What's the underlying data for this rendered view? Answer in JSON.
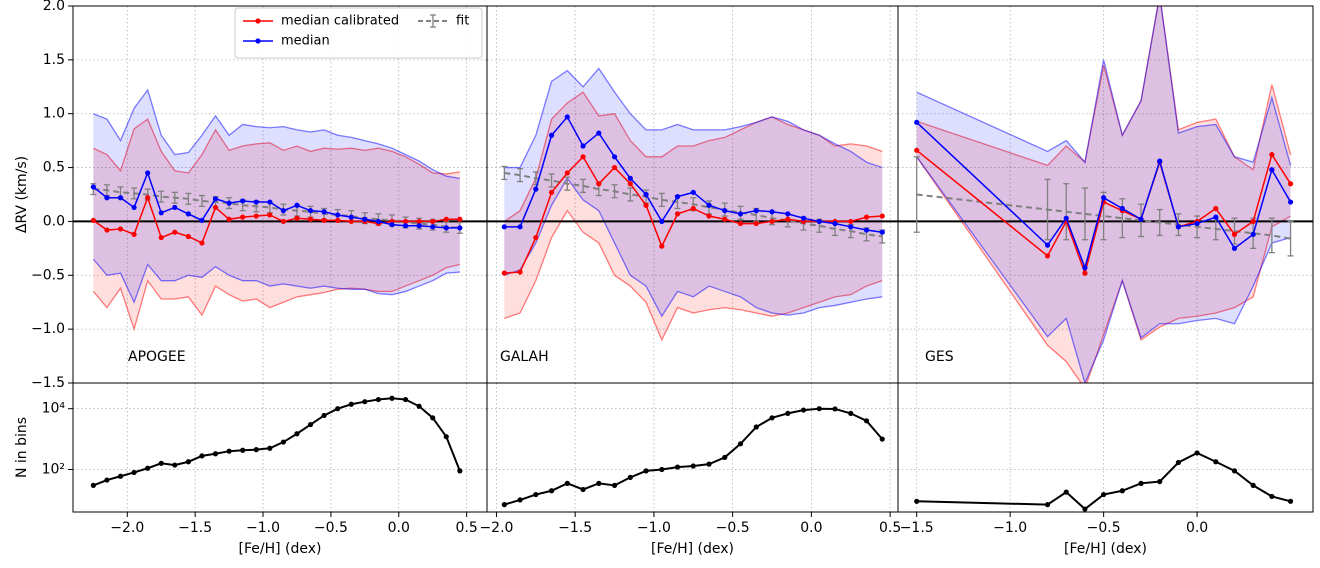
{
  "chart_data": [
    {
      "type": "line",
      "label": "APOGEE",
      "ylabel": "ΔRV (km/s)",
      "grid": true,
      "legend": "upper right",
      "hline": 0,
      "ytick_labels": true,
      "xtick_labels": false,
      "xlim": [
        -2.4,
        0.65
      ],
      "xticks": [
        -2.0,
        -1.5,
        -1.0,
        -0.5,
        0.0,
        0.5
      ],
      "ylim": [
        -1.5,
        2.0
      ],
      "yticks": [
        {
          "value": -1.5,
          "label": "−1.5"
        },
        {
          "value": -1.0,
          "label": "−1.0"
        },
        {
          "value": -0.5,
          "label": "−0.5"
        },
        {
          "value": 0.0,
          "label": "0.0"
        },
        0.5,
        {
          "value": 1.0,
          "label": "1.0"
        },
        1.5,
        {
          "value": 2.0,
          "label": "2.0"
        }
      ],
      "x": [
        -2.25,
        -2.15,
        -2.05,
        -1.95,
        -1.85,
        -1.75,
        -1.65,
        -1.55,
        -1.45,
        -1.35,
        -1.25,
        -1.15,
        -1.05,
        -0.95,
        -0.85,
        -0.75,
        -0.65,
        -0.55,
        -0.45,
        -0.35,
        -0.25,
        -0.15,
        -0.05,
        0.05,
        0.15,
        0.25,
        0.35,
        0.45
      ],
      "series": [
        {
          "name": "median calibrated",
          "color": "#ff0000",
          "values": [
            0.01,
            -0.08,
            -0.07,
            -0.12,
            0.22,
            -0.15,
            -0.1,
            -0.14,
            -0.2,
            0.13,
            0.02,
            0.04,
            0.05,
            0.06,
            0.0,
            0.03,
            0.02,
            0.01,
            0.01,
            0.0,
            0.0,
            -0.02,
            0.0,
            0.0,
            0.0,
            0.0,
            0.02,
            0.02
          ],
          "upper": [
            0.68,
            0.62,
            0.47,
            0.86,
            0.95,
            0.65,
            0.47,
            0.45,
            0.62,
            0.85,
            0.66,
            0.7,
            0.72,
            0.73,
            0.66,
            0.7,
            0.65,
            0.68,
            0.67,
            0.68,
            0.66,
            0.68,
            0.65,
            0.6,
            0.53,
            0.45,
            0.44,
            0.46
          ],
          "lower": [
            -0.65,
            -0.8,
            -0.62,
            -1.0,
            -0.55,
            -0.72,
            -0.72,
            -0.7,
            -0.87,
            -0.6,
            -0.68,
            -0.74,
            -0.72,
            -0.8,
            -0.75,
            -0.7,
            -0.68,
            -0.66,
            -0.63,
            -0.62,
            -0.63,
            -0.65,
            -0.65,
            -0.6,
            -0.55,
            -0.5,
            -0.43,
            -0.4
          ]
        },
        {
          "name": "median",
          "color": "#0000ff",
          "values": [
            0.32,
            0.22,
            0.22,
            0.13,
            0.45,
            0.08,
            0.13,
            0.07,
            0.01,
            0.21,
            0.17,
            0.19,
            0.18,
            0.18,
            0.1,
            0.15,
            0.1,
            0.09,
            0.06,
            0.04,
            0.02,
            0.0,
            -0.03,
            -0.04,
            -0.04,
            -0.05,
            -0.06,
            -0.06
          ],
          "upper": [
            1.0,
            0.95,
            0.75,
            1.05,
            1.22,
            0.8,
            0.62,
            0.64,
            0.8,
            0.98,
            0.8,
            0.9,
            0.88,
            0.87,
            0.88,
            0.85,
            0.83,
            0.85,
            0.8,
            0.78,
            0.75,
            0.72,
            0.68,
            0.62,
            0.56,
            0.48,
            0.42,
            0.4
          ],
          "lower": [
            -0.35,
            -0.5,
            -0.48,
            -0.75,
            -0.4,
            -0.55,
            -0.55,
            -0.5,
            -0.52,
            -0.42,
            -0.5,
            -0.55,
            -0.55,
            -0.6,
            -0.58,
            -0.6,
            -0.62,
            -0.6,
            -0.62,
            -0.63,
            -0.63,
            -0.67,
            -0.68,
            -0.65,
            -0.6,
            -0.55,
            -0.48,
            -0.47
          ]
        },
        {
          "name": "fit",
          "color": "#808080",
          "values": [
            0.3,
            0.29,
            0.27,
            0.26,
            0.25,
            0.23,
            0.22,
            0.21,
            0.19,
            0.18,
            0.17,
            0.15,
            0.14,
            0.13,
            0.11,
            0.1,
            0.09,
            0.07,
            0.06,
            0.05,
            0.03,
            0.02,
            0.01,
            -0.01,
            -0.02,
            -0.03,
            -0.05,
            -0.06
          ],
          "errors": [
            0.05,
            0.05,
            0.05,
            0.05,
            0.05,
            0.05,
            0.05,
            0.05,
            0.05,
            0.05,
            0.05,
            0.05,
            0.05,
            0.05,
            0.05,
            0.05,
            0.05,
            0.05,
            0.05,
            0.05,
            0.05,
            0.05,
            0.05,
            0.05,
            0.05,
            0.05,
            0.05,
            0.05
          ]
        }
      ]
    },
    {
      "type": "line",
      "ylabel": "N in bins",
      "xlabel": "[Fe/H] (dex)",
      "log_y": true,
      "grid": true,
      "color": "#000000",
      "ytick_labels": true,
      "xtick_labels": true,
      "xlim": [
        -2.4,
        0.65
      ],
      "xticks": [
        {
          "value": -2.0,
          "label": "−2.0"
        },
        {
          "value": -1.5,
          "label": "−1.5"
        },
        {
          "value": -1.0,
          "label": "−1.0"
        },
        {
          "value": -0.5,
          "label": "−0.5"
        },
        {
          "value": 0.0,
          "label": "0.0"
        },
        0.5
      ],
      "ylim": [
        4,
        70000
      ],
      "yticks": [
        {
          "value": 100,
          "label": "10²"
        },
        {
          "value": 10000,
          "label": "10⁴"
        }
      ],
      "x": [
        -2.25,
        -2.15,
        -2.05,
        -1.95,
        -1.85,
        -1.75,
        -1.65,
        -1.55,
        -1.45,
        -1.35,
        -1.25,
        -1.15,
        -1.05,
        -0.95,
        -0.85,
        -0.75,
        -0.65,
        -0.55,
        -0.45,
        -0.35,
        -0.25,
        -0.15,
        -0.05,
        0.05,
        0.15,
        0.25,
        0.35,
        0.45
      ],
      "values": [
        30,
        45,
        60,
        80,
        110,
        160,
        140,
        180,
        280,
        330,
        400,
        430,
        450,
        500,
        800,
        1500,
        3000,
        6000,
        10000,
        14000,
        17000,
        20000,
        22000,
        20000,
        12000,
        5000,
        1200,
        90
      ]
    },
    {
      "type": "line",
      "label": "GALAH",
      "grid": true,
      "hline": 0,
      "ytick_labels": false,
      "xtick_labels": false,
      "xlim": [
        -2.06,
        0.55
      ],
      "xticks": [
        -2.0,
        -1.5,
        -1.0,
        -0.5,
        0.0,
        0.5
      ],
      "ylim": [
        -1.5,
        2.0
      ],
      "yticks": [
        -1.5,
        -1.0,
        -0.5,
        0.0,
        0.5,
        1.0,
        1.5,
        2.0
      ],
      "x": [
        -1.95,
        -1.85,
        -1.75,
        -1.65,
        -1.55,
        -1.45,
        -1.35,
        -1.25,
        -1.15,
        -1.05,
        -0.95,
        -0.85,
        -0.75,
        -0.65,
        -0.55,
        -0.45,
        -0.35,
        -0.25,
        -0.15,
        -0.05,
        0.05,
        0.15,
        0.25,
        0.35,
        0.45
      ],
      "series": [
        {
          "color": "#ff0000",
          "values": [
            -0.48,
            -0.47,
            -0.15,
            0.27,
            0.45,
            0.6,
            0.35,
            0.5,
            0.35,
            0.15,
            -0.23,
            0.07,
            0.12,
            0.05,
            0.02,
            -0.02,
            -0.02,
            0.0,
            0.02,
            0.0,
            0.0,
            0.0,
            0.0,
            0.04,
            0.05
          ],
          "upper": [
            0.0,
            0.1,
            0.4,
            0.95,
            1.1,
            1.2,
            0.98,
            1.0,
            0.75,
            0.6,
            0.6,
            0.7,
            0.7,
            0.75,
            0.78,
            0.85,
            0.92,
            0.97,
            0.9,
            0.85,
            0.8,
            0.7,
            0.72,
            0.7,
            0.65
          ],
          "lower": [
            -0.9,
            -0.85,
            -0.55,
            -0.15,
            0.1,
            -0.1,
            -0.2,
            -0.5,
            -0.6,
            -0.75,
            -1.1,
            -0.8,
            -0.85,
            -0.82,
            -0.8,
            -0.82,
            -0.85,
            -0.88,
            -0.85,
            -0.8,
            -0.75,
            -0.7,
            -0.68,
            -0.6,
            -0.55
          ]
        },
        {
          "color": "#0000ff",
          "values": [
            -0.05,
            -0.05,
            0.3,
            0.8,
            0.97,
            0.7,
            0.82,
            0.6,
            0.4,
            0.25,
            0.0,
            0.23,
            0.27,
            0.15,
            0.1,
            0.07,
            0.1,
            0.09,
            0.07,
            0.03,
            0.0,
            -0.02,
            -0.05,
            -0.08,
            -0.1
          ],
          "upper": [
            0.5,
            0.5,
            0.8,
            1.3,
            1.4,
            1.25,
            1.42,
            1.2,
            1.0,
            0.85,
            0.85,
            0.9,
            0.85,
            0.85,
            0.85,
            0.88,
            0.92,
            0.97,
            0.93,
            0.85,
            0.8,
            0.72,
            0.65,
            0.55,
            0.5
          ],
          "lower": [
            -0.5,
            -0.45,
            -0.2,
            0.15,
            0.4,
            0.2,
            0.1,
            -0.2,
            -0.5,
            -0.6,
            -0.88,
            -0.65,
            -0.7,
            -0.6,
            -0.65,
            -0.7,
            -0.8,
            -0.85,
            -0.87,
            -0.85,
            -0.8,
            -0.78,
            -0.75,
            -0.72,
            -0.7
          ]
        },
        {
          "color": "#808080",
          "values": [
            0.45,
            0.43,
            0.4,
            0.38,
            0.35,
            0.33,
            0.3,
            0.28,
            0.25,
            0.23,
            0.2,
            0.18,
            0.16,
            0.13,
            0.11,
            0.08,
            0.06,
            0.03,
            0.01,
            -0.02,
            -0.04,
            -0.07,
            -0.09,
            -0.12,
            -0.14
          ],
          "errors": [
            0.06,
            0.06,
            0.06,
            0.06,
            0.06,
            0.06,
            0.06,
            0.06,
            0.06,
            0.06,
            0.06,
            0.06,
            0.06,
            0.06,
            0.06,
            0.06,
            0.06,
            0.06,
            0.06,
            0.06,
            0.06,
            0.06,
            0.06,
            0.06,
            0.06
          ]
        }
      ]
    },
    {
      "type": "line",
      "xlabel": "[Fe/H] (dex)",
      "log_y": true,
      "grid": true,
      "color": "#000000",
      "ytick_labels": false,
      "xtick_labels": true,
      "xlim": [
        -2.06,
        0.55
      ],
      "xticks": [
        {
          "value": -2.0,
          "label": "−2.0"
        },
        {
          "value": -1.5,
          "label": "−1.5"
        },
        {
          "value": -1.0,
          "label": "−1.0"
        },
        {
          "value": -0.5,
          "label": "−0.5"
        },
        {
          "value": 0.0,
          "label": "0.0"
        },
        0.5
      ],
      "ylim": [
        4,
        70000
      ],
      "yticks": [
        100,
        10000
      ],
      "x": [
        -1.95,
        -1.85,
        -1.75,
        -1.65,
        -1.55,
        -1.45,
        -1.35,
        -1.25,
        -1.15,
        -1.05,
        -0.95,
        -0.85,
        -0.75,
        -0.65,
        -0.55,
        -0.45,
        -0.35,
        -0.25,
        -0.15,
        -0.05,
        0.05,
        0.15,
        0.25,
        0.35,
        0.45
      ],
      "values": [
        7,
        10,
        15,
        20,
        35,
        22,
        35,
        30,
        55,
        90,
        100,
        120,
        130,
        150,
        250,
        700,
        2500,
        5000,
        7000,
        9000,
        10000,
        9800,
        7000,
        4000,
        1000
      ]
    },
    {
      "type": "line",
      "label": "GES",
      "grid": true,
      "hline": 0,
      "ytick_labels": false,
      "xtick_labels": false,
      "xlim": [
        -1.6,
        0.62
      ],
      "xticks": [
        -1.5,
        -1.0,
        -0.5,
        0.0
      ],
      "ylim": [
        -1.5,
        2.0
      ],
      "yticks": [
        -1.5,
        -1.0,
        -0.5,
        0.0,
        0.5,
        1.0,
        1.5,
        2.0
      ],
      "x": [
        -1.5,
        -0.8,
        -0.7,
        -0.6,
        -0.5,
        -0.4,
        -0.3,
        -0.2,
        -0.1,
        0.0,
        0.1,
        0.2,
        0.3,
        0.4,
        0.5
      ],
      "series": [
        {
          "color": "#ff0000",
          "values": [
            0.66,
            -0.32,
            0.0,
            -0.48,
            0.18,
            0.1,
            0.02,
            0.55,
            -0.05,
            0.0,
            0.12,
            -0.12,
            0.0,
            0.62,
            0.35
          ],
          "upper": [
            0.93,
            0.52,
            0.7,
            0.55,
            1.45,
            0.8,
            1.12,
            2.1,
            0.85,
            0.92,
            0.95,
            0.6,
            0.48,
            1.27,
            0.62
          ],
          "lower": [
            0.6,
            -1.15,
            -1.3,
            -1.55,
            -1.05,
            -0.55,
            -1.1,
            -0.98,
            -0.9,
            -0.88,
            -0.85,
            -0.8,
            -0.7,
            -0.05,
            0.05
          ]
        },
        {
          "color": "#0000ff",
          "values": [
            0.92,
            -0.22,
            0.03,
            -0.43,
            0.22,
            0.12,
            0.02,
            0.56,
            -0.05,
            -0.02,
            0.04,
            -0.25,
            -0.12,
            0.48,
            0.18
          ],
          "upper": [
            1.2,
            0.65,
            0.75,
            0.55,
            1.5,
            0.8,
            1.12,
            2.1,
            0.82,
            0.88,
            0.9,
            0.6,
            0.55,
            1.15,
            0.52
          ],
          "lower": [
            0.6,
            -1.07,
            -0.9,
            -1.5,
            -1.1,
            -0.55,
            -1.08,
            -0.95,
            -0.95,
            -0.92,
            -0.9,
            -0.95,
            -0.6,
            -0.2,
            -0.15
          ]
        },
        {
          "color": "#808080",
          "values": [
            0.25,
            0.11,
            0.09,
            0.07,
            0.05,
            0.03,
            0.01,
            -0.01,
            -0.03,
            -0.05,
            -0.07,
            -0.09,
            -0.11,
            -0.13,
            -0.16
          ],
          "errors": [
            0.35,
            0.28,
            0.26,
            0.24,
            0.22,
            0.18,
            0.15,
            0.12,
            0.1,
            0.1,
            0.1,
            0.12,
            0.14,
            0.16,
            0.16
          ]
        }
      ]
    },
    {
      "type": "line",
      "xlabel": "[Fe/H] (dex)",
      "log_y": true,
      "grid": true,
      "color": "#000000",
      "ytick_labels": false,
      "xtick_labels": true,
      "xlim": [
        -1.6,
        0.62
      ],
      "xticks": [
        {
          "value": -1.5,
          "label": "−1.5"
        },
        {
          "value": -1.0,
          "label": "−1.0"
        },
        {
          "value": -0.5,
          "label": "−0.5"
        },
        {
          "value": 0.0,
          "label": "0.0"
        }
      ],
      "ylim": [
        4,
        70000
      ],
      "yticks": [
        100,
        10000
      ],
      "x": [
        -1.5,
        -0.8,
        -0.7,
        -0.6,
        -0.5,
        -0.4,
        -0.3,
        -0.2,
        -0.1,
        0.0,
        0.1,
        0.2,
        0.3,
        0.4,
        0.5
      ],
      "values": [
        9,
        7,
        18,
        5,
        15,
        20,
        35,
        40,
        170,
        350,
        180,
        90,
        30,
        13,
        9
      ]
    }
  ]
}
